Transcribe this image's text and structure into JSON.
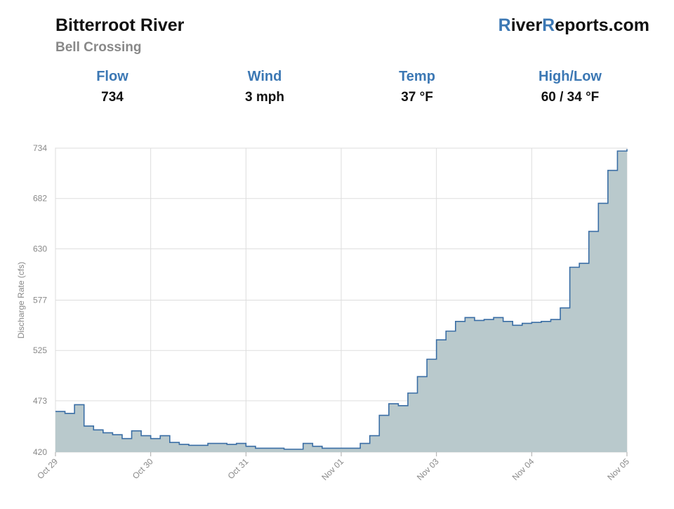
{
  "header": {
    "title": "Bitterroot River",
    "subtitle": "Bell Crossing",
    "brand": [
      "R",
      "iver",
      "R",
      "eports.com"
    ]
  },
  "stats": [
    {
      "label": "Flow",
      "value": "734"
    },
    {
      "label": "Wind",
      "value": "3 mph"
    },
    {
      "label": "Temp",
      "value": "37 °F"
    },
    {
      "label": "High/Low",
      "value": "60 / 34 °F"
    }
  ],
  "chart_data": {
    "type": "step-area",
    "y_label": "Discharge Rate (cfs)",
    "line_color": "#3a6ea5",
    "fill_color": "#b9c9cc",
    "grid": true,
    "xlim": [
      0,
      6
    ],
    "xticks": [
      {
        "value": 0,
        "label": "Oct 29"
      },
      {
        "value": 1,
        "label": "Oct 30"
      },
      {
        "value": 2,
        "label": "Oct 31"
      },
      {
        "value": 3,
        "label": "Nov 01"
      },
      {
        "value": 4,
        "label": "Nov 03"
      },
      {
        "value": 5,
        "label": "Nov 04"
      },
      {
        "value": 6,
        "label": "Nov 05"
      }
    ],
    "ylim": [
      420,
      734
    ],
    "yticks": [
      420,
      473,
      525,
      577,
      630,
      682,
      734
    ],
    "x": [
      0,
      0.1,
      0.2,
      0.3,
      0.4,
      0.5,
      0.6,
      0.7,
      0.8,
      0.9,
      1.0,
      1.1,
      1.2,
      1.3,
      1.4,
      1.5,
      1.6,
      1.7,
      1.8,
      1.9,
      2.0,
      2.1,
      2.2,
      2.3,
      2.4,
      2.5,
      2.6,
      2.7,
      2.8,
      2.9,
      3.0,
      3.1,
      3.2,
      3.3,
      3.4,
      3.5,
      3.6,
      3.7,
      3.8,
      3.9,
      4.0,
      4.1,
      4.2,
      4.3,
      4.4,
      4.5,
      4.6,
      4.7,
      4.8,
      4.9,
      5.0,
      5.1,
      5.2,
      5.3,
      5.4,
      5.5,
      5.6,
      5.7,
      5.8,
      5.9,
      6.0
    ],
    "values": [
      462,
      460,
      469,
      447,
      443,
      440,
      438,
      434,
      442,
      437,
      434,
      437,
      430,
      428,
      427,
      427,
      429,
      429,
      428,
      429,
      426,
      424,
      424,
      424,
      423,
      423,
      429,
      426,
      424,
      424,
      424,
      424,
      429,
      437,
      458,
      470,
      468,
      481,
      498,
      516,
      536,
      545,
      555,
      559,
      556,
      557,
      559,
      555,
      551,
      553,
      554,
      555,
      557,
      569,
      611,
      615,
      648,
      677,
      711,
      731,
      733
    ]
  }
}
